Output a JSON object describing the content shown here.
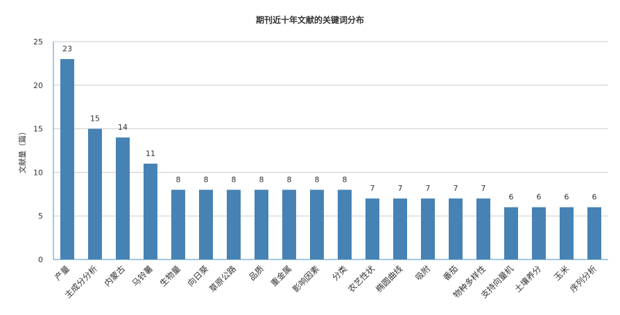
{
  "chart_data": {
    "type": "bar",
    "title": "期刊近十年文献的关键词分布",
    "xlabel": "",
    "ylabel": "文献量（篇）",
    "ylim": [
      0,
      25
    ],
    "yticks": [
      0,
      5,
      10,
      15,
      20,
      25
    ],
    "grid": true,
    "categories": [
      "产量",
      "主成分分析",
      "内蒙古",
      "马铃薯",
      "生物量",
      "向日葵",
      "草原公路",
      "品质",
      "重金属",
      "影响因素",
      "分类",
      "农艺性状",
      "椭圆曲线",
      "吸附",
      "番茄",
      "物种多样性",
      "支持向量机",
      "土壤养分",
      "玉米",
      "序列分析"
    ],
    "values": [
      23,
      15,
      14,
      11,
      8,
      8,
      8,
      8,
      8,
      8,
      8,
      7,
      7,
      7,
      7,
      7,
      6,
      6,
      6,
      6
    ],
    "bar_color": "#4682b4",
    "axis_color": "#4a90c2",
    "grid_color": "#cccccc"
  }
}
